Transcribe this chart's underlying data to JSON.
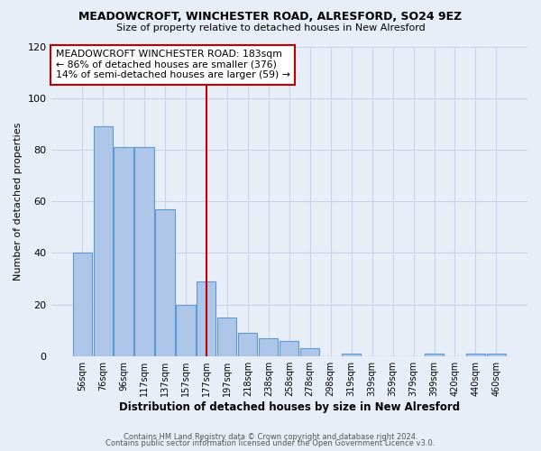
{
  "title": "MEADOWCROFT, WINCHESTER ROAD, ALRESFORD, SO24 9EZ",
  "subtitle": "Size of property relative to detached houses in New Alresford",
  "xlabel": "Distribution of detached houses by size in New Alresford",
  "ylabel": "Number of detached properties",
  "bar_labels": [
    "56sqm",
    "76sqm",
    "96sqm",
    "117sqm",
    "137sqm",
    "157sqm",
    "177sqm",
    "197sqm",
    "218sqm",
    "238sqm",
    "258sqm",
    "278sqm",
    "298sqm",
    "319sqm",
    "339sqm",
    "359sqm",
    "379sqm",
    "399sqm",
    "420sqm",
    "440sqm",
    "460sqm"
  ],
  "bar_values": [
    40,
    89,
    81,
    81,
    57,
    20,
    29,
    15,
    9,
    7,
    6,
    3,
    0,
    1,
    0,
    0,
    0,
    1,
    0,
    1,
    1
  ],
  "bar_color": "#aec6e8",
  "bar_edge_color": "#5b9bd5",
  "vline_x_index": 6,
  "vline_color": "#c00000",
  "annotation_line1": "MEADOWCROFT WINCHESTER ROAD: 183sqm",
  "annotation_line2": "← 86% of detached houses are smaller (376)",
  "annotation_line3": "14% of semi-detached houses are larger (59) →",
  "annotation_box_edge_color": "#c00000",
  "annotation_box_face_color": "#ffffff",
  "ylim": [
    0,
    120
  ],
  "yticks": [
    0,
    20,
    40,
    60,
    80,
    100,
    120
  ],
  "grid_color": "#c8d4e8",
  "background_color": "#e8eef8",
  "footer1": "Contains HM Land Registry data © Crown copyright and database right 2024.",
  "footer2": "Contains public sector information licensed under the Open Government Licence v3.0."
}
